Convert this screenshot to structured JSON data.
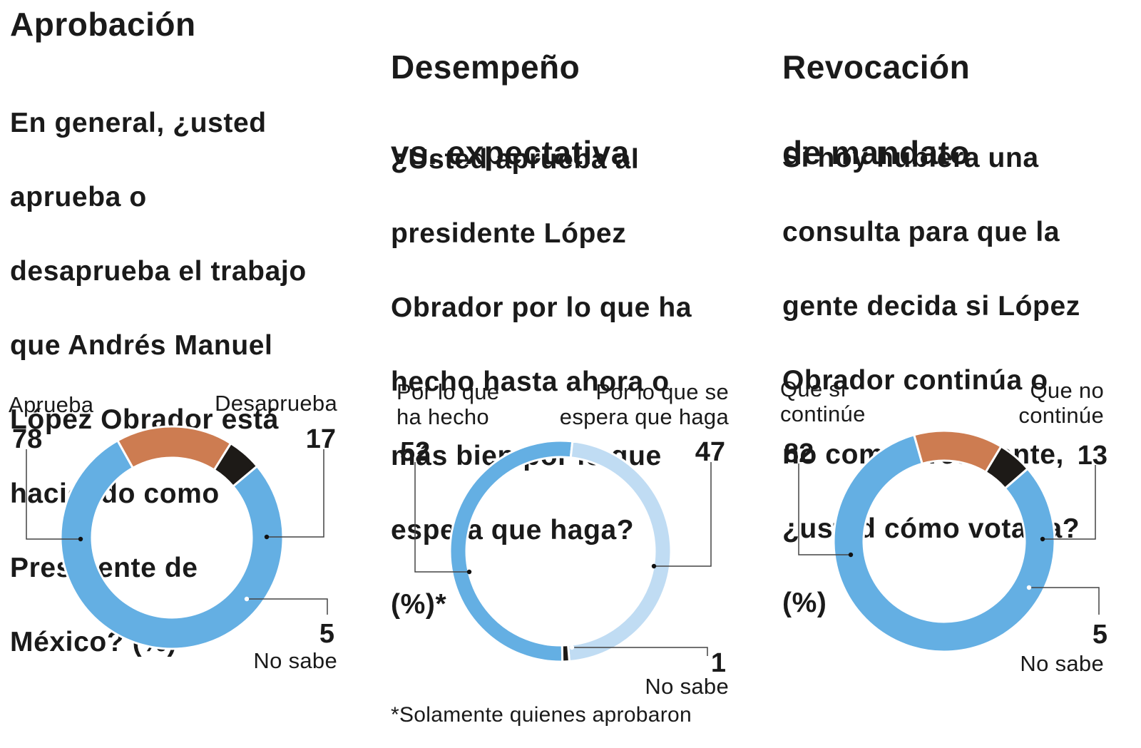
{
  "colors": {
    "blue": "#64afe3",
    "light_blue": "#c0dcf3",
    "orange": "#cd7c51",
    "black": "#1d1a17",
    "line": "#444444",
    "text": "#1a1a1a"
  },
  "footnote": "*Solamente quienes aprobaron",
  "chart_data": [
    {
      "type": "pie",
      "title": "Aprobación",
      "question": "En general, ¿usted aprueba o desaprueba el trabajo que Andrés Manuel López Obrador está haciendo como Presidente de México? (%)",
      "question_lines": [
        "En general, ¿usted",
        "aprueba o",
        "desaprueba el trabajo",
        "que Andrés Manuel",
        "López Obrador está",
        "haciendo como",
        "Presidente de",
        "México? (%)"
      ],
      "slices": [
        {
          "name": "Aprueba",
          "name_lines": [
            "Aprueba"
          ],
          "value": 78,
          "color": "#64afe3"
        },
        {
          "name": "Desaprueba",
          "name_lines": [
            "Desaprueba"
          ],
          "value": 17,
          "color": "#cd7c51"
        },
        {
          "name": "No sabe",
          "name_lines": [
            "No sabe"
          ],
          "value": 5,
          "color": "#1d1a17"
        }
      ]
    },
    {
      "type": "pie",
      "title": "Desempeño vs. expectativa",
      "title_lines": [
        "Desempeño",
        "vs. expectativa"
      ],
      "question": "¿Usted aprueba al presidente López Obrador por lo que ha hecho hasta ahora o más bien por lo que espera que haga? (%)*",
      "question_lines": [
        "¿Usted aprueba al",
        "presidente López",
        "Obrador por lo que ha",
        "hecho hasta ahora o",
        "más bien por lo que",
        "espera que haga?",
        "(%)*"
      ],
      "slices": [
        {
          "name": "Por lo que ha hecho",
          "name_lines": [
            "Por lo que",
            "ha hecho"
          ],
          "value": 52,
          "color": "#64afe3"
        },
        {
          "name": "Por lo que se espera que haga",
          "name_lines": [
            "Por lo que se",
            "espera que haga"
          ],
          "value": 47,
          "color": "#c0dcf3"
        },
        {
          "name": "No sabe",
          "name_lines": [
            "No sabe"
          ],
          "value": 1,
          "color": "#1d1a17"
        }
      ]
    },
    {
      "type": "pie",
      "title": "Revocación de mandato",
      "title_lines": [
        "Revocación",
        "de mandato"
      ],
      "question": "Si hoy hubiera una consulta para que la gente decida si López Obrador continúa o no como Presidente, ¿usted cómo votaría? (%)",
      "question_lines": [
        "Si hoy hubiera una",
        "consulta para que la",
        "gente decida si López",
        "Obrador continúa o",
        "no como Presidente,",
        "¿usted cómo votaría?",
        "(%)"
      ],
      "slices": [
        {
          "name": "Que sí continúe",
          "name_lines": [
            "Que sí",
            "continúe"
          ],
          "value": 82,
          "color": "#64afe3"
        },
        {
          "name": "Que no continúe",
          "name_lines": [
            "Que no",
            "continúe"
          ],
          "value": 13,
          "color": "#cd7c51"
        },
        {
          "name": "No sabe",
          "name_lines": [
            "No sabe"
          ],
          "value": 5,
          "color": "#1d1a17"
        }
      ]
    }
  ]
}
